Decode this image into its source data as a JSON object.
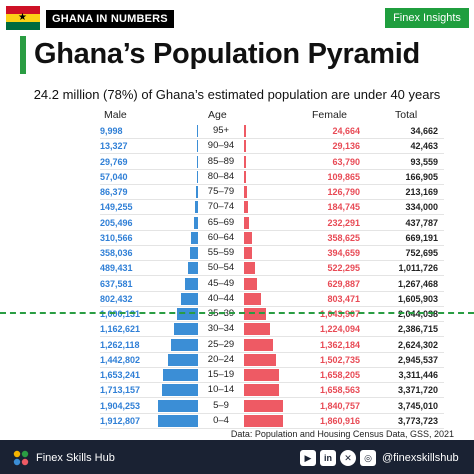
{
  "header": {
    "kicker": "GHANA IN NUMBERS",
    "brand_badge": "Finex Insights",
    "title": "Ghana’s Population Pyramid",
    "subtitle": "24.2 million (78%) of Ghana’s estimated population are under 40 years"
  },
  "columns": {
    "male": "Male",
    "age": "Age",
    "female": "Female",
    "total": "Total"
  },
  "chart_data": {
    "type": "bar",
    "orientation": "horizontal-pyramid",
    "categories": [
      "95+",
      "90–94",
      "85–89",
      "80–84",
      "75–79",
      "70–74",
      "65–69",
      "60–64",
      "55–59",
      "50–54",
      "45–49",
      "40–44",
      "35–39",
      "30–34",
      "25–29",
      "20–24",
      "15–19",
      "10–14",
      "5–9",
      "0–4"
    ],
    "series": [
      {
        "name": "Male",
        "labels": [
          "9,998",
          "13,327",
          "29,769",
          "57,040",
          "86,379",
          "149,255",
          "205,496",
          "310,566",
          "358,036",
          "489,431",
          "637,581",
          "802,432",
          "1,000,131",
          "1,162,621",
          "1,262,118",
          "1,442,802",
          "1,653,241",
          "1,713,157",
          "1,904,253",
          "1,912,807"
        ],
        "values": [
          9998,
          13327,
          29769,
          57040,
          86379,
          149255,
          205496,
          310566,
          358036,
          489431,
          637581,
          802432,
          1000131,
          1162621,
          1262118,
          1442802,
          1653241,
          1713157,
          1904253,
          1912807
        ]
      },
      {
        "name": "Female",
        "labels": [
          "24,664",
          "29,136",
          "63,790",
          "109,865",
          "126,790",
          "184,745",
          "232,291",
          "358,625",
          "394,659",
          "522,295",
          "629,887",
          "803,471",
          "1,043,907",
          "1,224,094",
          "1,362,184",
          "1,502,735",
          "1,658,205",
          "1,658,563",
          "1,840,757",
          "1,860,916"
        ],
        "values": [
          24664,
          29136,
          63790,
          109865,
          126790,
          184745,
          232291,
          358625,
          394659,
          522295,
          629887,
          803471,
          1043907,
          1224094,
          1362184,
          1502735,
          1658205,
          1658563,
          1840757,
          1860916
        ]
      }
    ],
    "totals": [
      "34,662",
      "42,463",
      "93,559",
      "166,905",
      "213,169",
      "334,000",
      "437,787",
      "669,191",
      "752,695",
      "1,011,726",
      "1,267,468",
      "1,605,903",
      "2,044,038",
      "2,386,715",
      "2,624,302",
      "2,945,537",
      "3,311,446",
      "3,371,720",
      "3,745,010",
      "3,773,723"
    ],
    "xmax": 2000000,
    "marker_after_category": "40–44",
    "colors": {
      "male": "#3b8ed6",
      "female": "#ee5a64",
      "marker": "#2a9d43"
    }
  },
  "source": "Data: Population and Housing Census Data, GSS, 2021",
  "footer": {
    "brand": "Finex Skills Hub",
    "handle": "@finexskillshub",
    "social_icons": [
      "youtube-icon",
      "linkedin-icon",
      "x-icon",
      "instagram-icon"
    ]
  }
}
